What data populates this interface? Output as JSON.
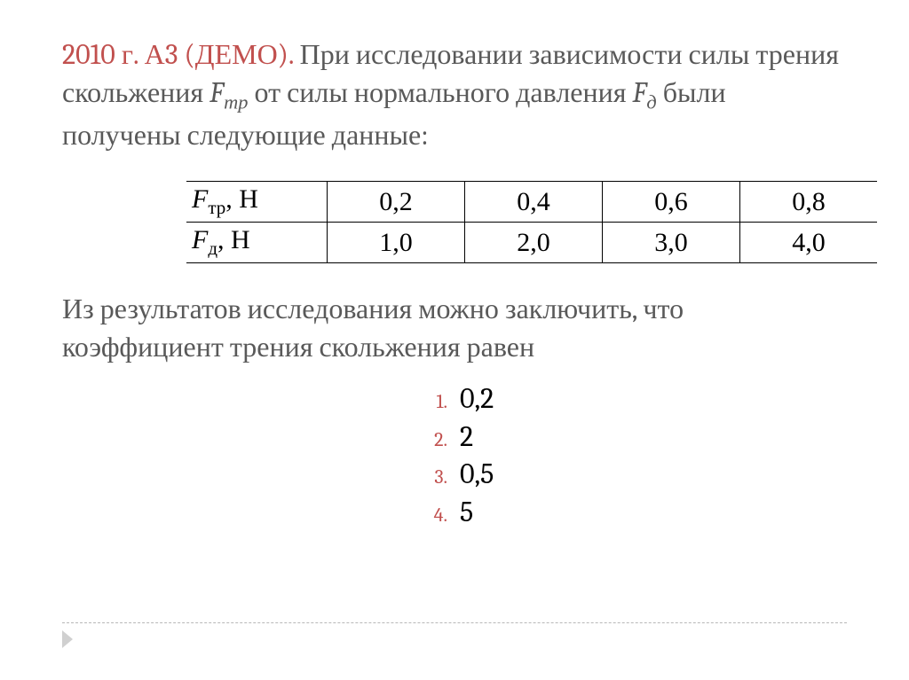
{
  "problem": {
    "source": "2010 г. А3 (ДЕМО).",
    "text_part1": " При исследовании зависимости силы трения скольжения ",
    "F_tr_sym": "F",
    "F_tr_sub": "тр",
    "text_part2": " от силы нормального давления ",
    "F_d_sym": "F",
    "F_d_sub": "д",
    "text_part3": " были получены следующие данные:"
  },
  "table": {
    "rows": [
      {
        "label_sym": "F",
        "label_sub": "тр",
        "label_unit": ", Н",
        "cells": [
          "0,2",
          "0,4",
          "0,6",
          "0,8"
        ]
      },
      {
        "label_sym": "F",
        "label_sub": "д",
        "label_unit": ", Н",
        "cells": [
          "1,0",
          "2,0",
          "3,0",
          "4,0"
        ]
      }
    ],
    "cell_font_family": "Times New Roman",
    "cell_fontsize": 30,
    "border_color": "#000000",
    "text_color": "#000000"
  },
  "conclusion": "Из результатов исследования можно заключить, что коэффициент трения скольжения равен",
  "answers": {
    "items": [
      {
        "num": "1.",
        "val": "0,2"
      },
      {
        "num": "2.",
        "val": "2"
      },
      {
        "num": "3.",
        "val": "0,5"
      },
      {
        "num": "4.",
        "val": "5"
      }
    ],
    "num_color": "#c1504e",
    "num_fontsize": 22,
    "val_color": "#000000",
    "val_fontsize": 32
  },
  "colors": {
    "accent_red": "#c1504e",
    "body_gray": "#595959",
    "black": "#000000",
    "background": "#ffffff",
    "divider": "#b8b8b8",
    "chevron": "#d0d0d0"
  },
  "typography": {
    "body_fontsize": 32,
    "body_font": "Cambria"
  }
}
